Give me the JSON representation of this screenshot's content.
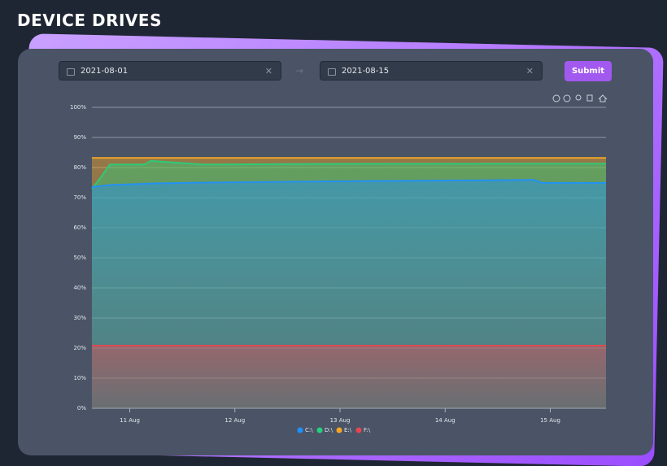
{
  "header": {
    "title": "DEVICE DRIVES"
  },
  "form": {
    "start_date": "2021-08-01",
    "end_date": "2021-08-15",
    "submit": "Submit"
  },
  "chart_data": {
    "type": "area",
    "x": [
      10.64,
      10.71,
      10.81,
      11.14,
      11.2,
      11.7,
      12.86,
      14.84,
      14.92,
      15.53
    ],
    "xlim": [
      10.64,
      15.53
    ],
    "xticks": [
      {
        "value": 11,
        "label": "11 Aug"
      },
      {
        "value": 12,
        "label": "12 Aug"
      },
      {
        "value": 13,
        "label": "13 Aug"
      },
      {
        "value": 14,
        "label": "14 Aug"
      },
      {
        "value": 15,
        "label": "15 Aug"
      }
    ],
    "ylim": [
      0,
      100
    ],
    "yticks": [
      {
        "value": 0,
        "label": "0%"
      },
      {
        "value": 10,
        "label": "10%"
      },
      {
        "value": 20,
        "label": "20%"
      },
      {
        "value": 30,
        "label": "30%"
      },
      {
        "value": 40,
        "label": "40%"
      },
      {
        "value": 50,
        "label": "50%"
      },
      {
        "value": 60,
        "label": "60%"
      },
      {
        "value": 70,
        "label": "70%"
      },
      {
        "value": 80,
        "label": "80%"
      },
      {
        "value": 90,
        "label": "90%"
      },
      {
        "value": 100,
        "label": "100%"
      }
    ],
    "grid": true,
    "legend": "bottom",
    "series": [
      {
        "name": "C:\\",
        "color": "#1e90ff",
        "values": [
          73.5,
          73.8,
          74.2,
          74.6,
          74.7,
          75,
          75.4,
          75.9,
          74.9,
          74.9
        ]
      },
      {
        "name": "D:\\",
        "color": "#26d07c",
        "values": [
          73,
          76,
          81,
          81,
          82.2,
          81,
          81.2,
          81.3,
          81.3,
          81.3
        ]
      },
      {
        "name": "E:\\",
        "color": "#f5a623",
        "values": [
          83.2,
          83.2,
          83.2,
          83.2,
          83.2,
          83.2,
          83.2,
          83.2,
          83.2,
          83.2
        ]
      },
      {
        "name": "F:\\",
        "color": "#e8454f",
        "values": [
          20.8,
          20.8,
          20.8,
          20.8,
          20.8,
          20.8,
          20.8,
          20.8,
          20.8,
          20.8
        ]
      }
    ]
  }
}
